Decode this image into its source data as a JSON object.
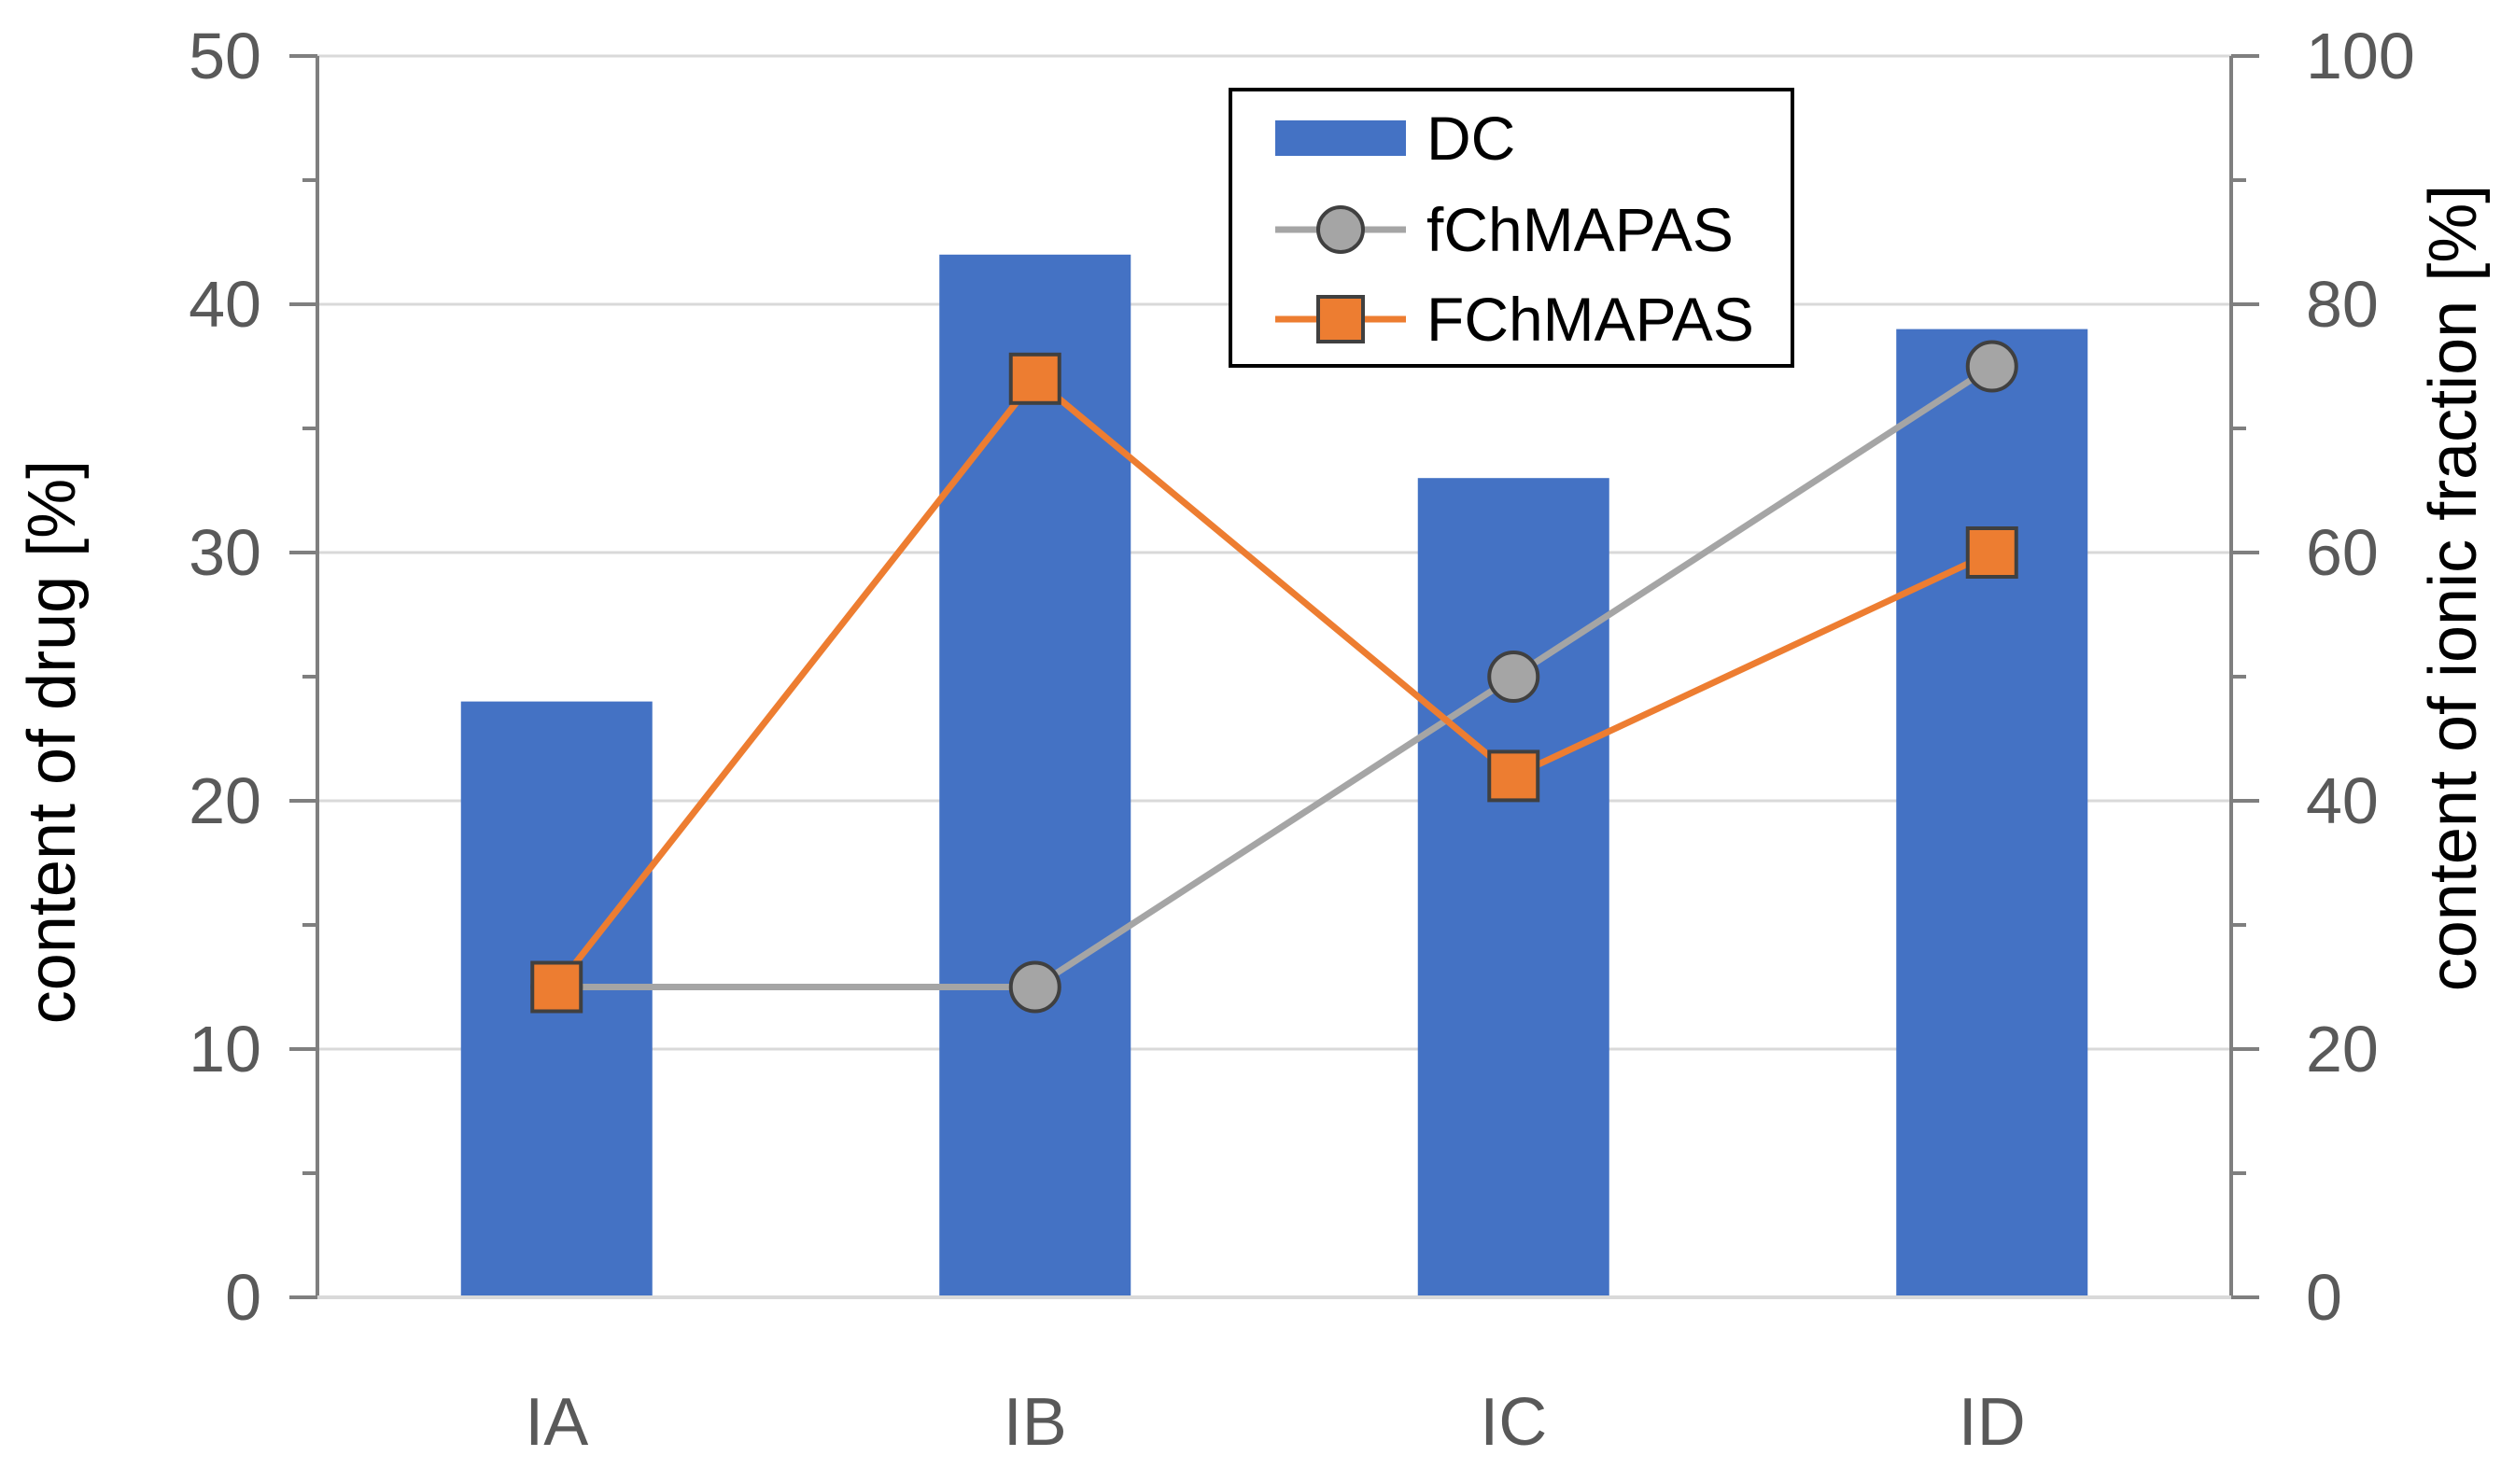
{
  "chart_data": {
    "type": "bar",
    "title": "",
    "categories": [
      "IA",
      "IB",
      "IC",
      "ID"
    ],
    "xlabel": "",
    "ylabel": "content of drug [%]",
    "ylabel_right": "content of ionic fraction [%]",
    "ylim": [
      0,
      50
    ],
    "ylim_right": [
      0,
      100
    ],
    "yticks": [
      "0",
      "10",
      "20",
      "30",
      "40",
      "50"
    ],
    "yticks_right": [
      "0",
      "20",
      "40",
      "60",
      "80",
      "100"
    ],
    "grid": true,
    "legend_position": "top-center",
    "series": [
      {
        "name": "DC",
        "type": "bar",
        "axis": "left",
        "values": [
          24,
          42,
          33,
          39
        ],
        "color": "#4472C4"
      },
      {
        "name": "fChMAPAS",
        "type": "line",
        "marker": "circle",
        "axis": "right",
        "values": [
          25,
          25,
          50,
          75
        ],
        "color": "#A5A5A5"
      },
      {
        "name": "FChMAPAS",
        "type": "line",
        "marker": "square",
        "axis": "right",
        "values": [
          25,
          74,
          42,
          60
        ],
        "color": "#ED7D31"
      }
    ]
  }
}
